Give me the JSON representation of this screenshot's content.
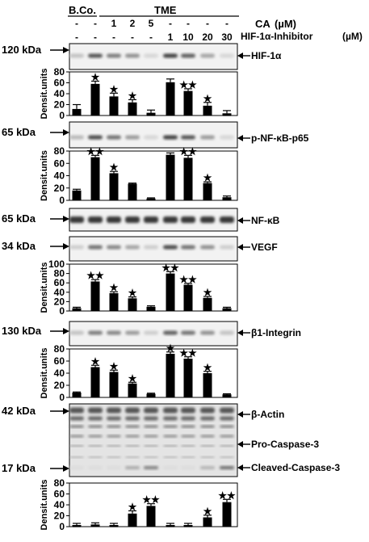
{
  "header": {
    "bco": "B.Co.",
    "tme": "TME",
    "row1": [
      "-",
      "-",
      "1",
      "2",
      "5",
      "-",
      "-",
      "-",
      "-"
    ],
    "row2": [
      "-",
      "-",
      "-",
      "-",
      "-",
      "1",
      "10",
      "20",
      "30"
    ],
    "ca_label": "CA",
    "ca_unit": "(µM)",
    "inh_label": "HIF-1α-Inhibitor",
    "inh_unit": "(µM)"
  },
  "ylabel": "Densit.units",
  "blots": [
    {
      "kda": "120 kDa",
      "label": "HIF-1α"
    },
    {
      "kda": "65 kDa",
      "label": "p-NF-κB-p65"
    },
    {
      "kda": "65 kDa",
      "label": "NF-κB"
    },
    {
      "kda": "34 kDa",
      "label": "VEGF"
    },
    {
      "kda": "130 kDa",
      "label": "β1-Integrin"
    },
    {
      "kda": "42 kDa",
      "label": "β-Actin"
    },
    {
      "kda": "",
      "label": "Pro-Caspase-3"
    },
    {
      "kda": "17 kDa",
      "label": "Cleaved-Caspase-3"
    }
  ],
  "chart_data": [
    {
      "type": "bar",
      "panel": "HIF-1α",
      "ylabel": "Densit.units",
      "ylim": [
        0,
        80
      ],
      "yticks": [
        0,
        20,
        40,
        60,
        80
      ],
      "values": [
        12,
        58,
        35,
        24,
        5,
        61,
        45,
        18,
        4
      ],
      "errors": [
        8,
        5,
        6,
        5,
        5,
        6,
        4,
        6,
        5
      ],
      "stars": [
        "",
        "★",
        "★",
        "★",
        "",
        "",
        "★★",
        "★",
        ""
      ]
    },
    {
      "type": "bar",
      "panel": "p-NF-κB-p65",
      "ylabel": "Densit.units",
      "ylim": [
        0,
        80
      ],
      "yticks": [
        0,
        20,
        40,
        60,
        80
      ],
      "values": [
        16,
        70,
        44,
        27,
        3,
        74,
        69,
        28,
        5
      ],
      "errors": [
        2,
        3,
        3,
        1,
        1,
        3,
        4,
        2,
        2
      ],
      "stars": [
        "",
        "★★",
        "★",
        "",
        "",
        "",
        "★★",
        "★",
        ""
      ]
    },
    {
      "type": "bar",
      "panel": "VEGF",
      "ylabel": "Densit.units",
      "ylim": [
        0,
        100
      ],
      "yticks": [
        0,
        20,
        40,
        60,
        80,
        100
      ],
      "values": [
        6,
        63,
        38,
        27,
        9,
        80,
        56,
        28,
        6
      ],
      "errors": [
        2,
        4,
        3,
        3,
        2,
        4,
        3,
        3,
        2
      ],
      "stars": [
        "",
        "★★",
        "★",
        "★",
        "",
        "★★",
        "★★",
        "★",
        ""
      ]
    },
    {
      "type": "bar",
      "panel": "β1-Integrin",
      "ylabel": "Densit.units",
      "ylim": [
        0,
        80
      ],
      "yticks": [
        0,
        20,
        40,
        60,
        80
      ],
      "values": [
        8,
        50,
        42,
        23,
        6,
        72,
        64,
        40,
        5
      ],
      "errors": [
        1,
        3,
        3,
        2,
        1,
        3,
        3,
        3,
        1
      ],
      "stars": [
        "",
        "★",
        "★",
        "★",
        "",
        "★",
        "★★",
        "★",
        ""
      ]
    },
    {
      "type": "bar",
      "panel": "Cleaved-Caspase-3",
      "ylabel": "Densit.units",
      "ylim": [
        0,
        80
      ],
      "yticks": [
        0,
        20,
        40,
        60,
        80
      ],
      "values": [
        3,
        4,
        3,
        24,
        38,
        3,
        3,
        17,
        45
      ],
      "errors": [
        3,
        3,
        3,
        5,
        4,
        3,
        3,
        4,
        5
      ],
      "stars": [
        "",
        "",
        "",
        "★",
        "★★",
        "",
        "",
        "★",
        "★★"
      ]
    }
  ]
}
